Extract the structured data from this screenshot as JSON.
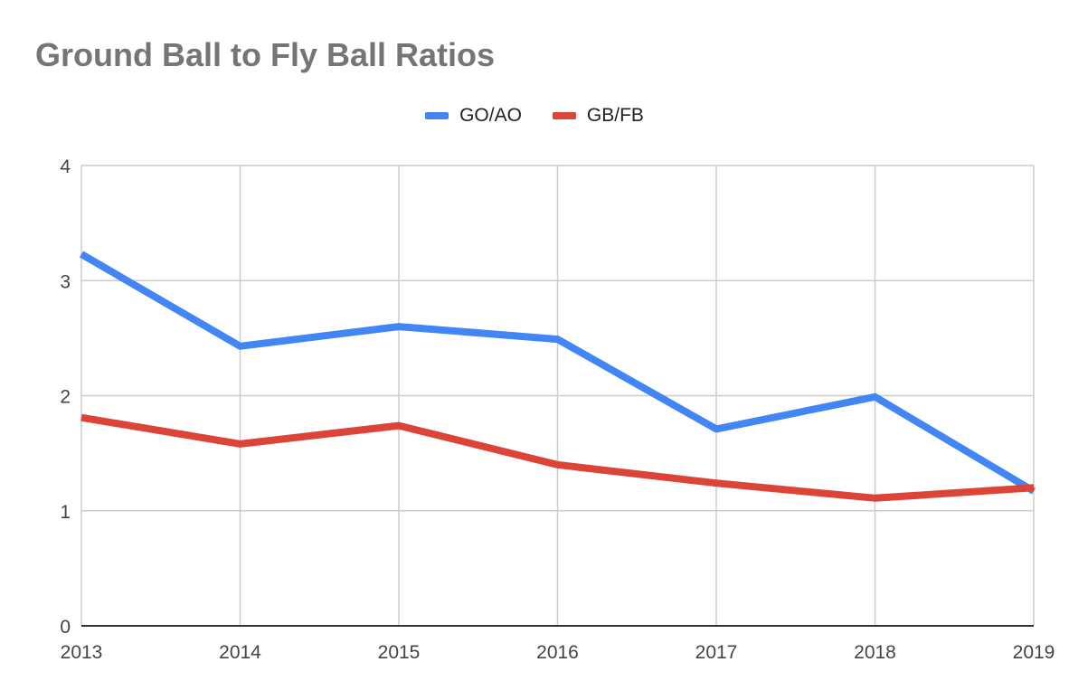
{
  "chart_data": {
    "type": "line",
    "title": "Ground Ball to Fly Ball Ratios",
    "x": [
      "2013",
      "2014",
      "2015",
      "2016",
      "2017",
      "2018",
      "2019"
    ],
    "series": [
      {
        "name": "GO/AO",
        "color": "#4285F4",
        "values": [
          3.23,
          2.43,
          2.6,
          2.49,
          1.71,
          1.99,
          1.17
        ]
      },
      {
        "name": "GB/FB",
        "color": "#DB4437",
        "values": [
          1.81,
          1.58,
          1.74,
          1.4,
          1.24,
          1.11,
          1.2
        ]
      }
    ],
    "ylim": [
      0,
      4
    ],
    "yticks": [
      "0",
      "1",
      "2",
      "3",
      "4"
    ],
    "xlabel": "",
    "ylabel": "",
    "grid": true,
    "legend_position": "top"
  }
}
